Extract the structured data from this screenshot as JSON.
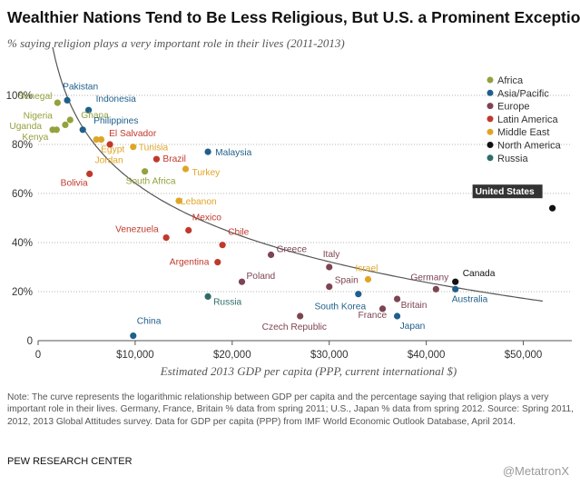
{
  "chart_data": {
    "type": "scatter",
    "title": "Wealthier Nations Tend to Be Less Religious, But U.S. a Prominent Exception",
    "subtitle": "% saying religion plays a very important role in their lives (2011-2013)",
    "xlabel": "Estimated 2013 GDP per capita (PPP, current international $)",
    "ylabel": "",
    "xlim": [
      0,
      55000
    ],
    "ylim": [
      0,
      100
    ],
    "x_ticks": [
      0,
      10000,
      20000,
      30000,
      40000,
      50000
    ],
    "x_tick_labels": [
      "0",
      "$10,000",
      "$20,000",
      "$30,000",
      "$40,000",
      "$50,000"
    ],
    "y_ticks": [
      0,
      20,
      40,
      60,
      80,
      100
    ],
    "y_tick_labels": [
      "0",
      "20%",
      "40%",
      "60%",
      "80%",
      "100%"
    ],
    "grid": "horizontal dotted",
    "legend_position": "top-right",
    "series": [
      {
        "name": "Africa",
        "color": "#95a13d",
        "points": [
          {
            "label": "Senegal",
            "x": 2000,
            "y": 97
          },
          {
            "label": "Ghana",
            "x": 3300,
            "y": 90
          },
          {
            "label": "Nigeria",
            "x": 2800,
            "y": 88
          },
          {
            "label": "Uganda",
            "x": 1500,
            "y": 86
          },
          {
            "label": "Kenya",
            "x": 1900,
            "y": 86
          },
          {
            "label": "South Africa",
            "x": 11000,
            "y": 69
          }
        ]
      },
      {
        "name": "Asia/Pacific",
        "color": "#1f5f8b",
        "points": [
          {
            "label": "Pakistan",
            "x": 3000,
            "y": 98
          },
          {
            "label": "Indonesia",
            "x": 5200,
            "y": 94
          },
          {
            "label": "Philippines",
            "x": 4600,
            "y": 86
          },
          {
            "label": "Malaysia",
            "x": 17500,
            "y": 77
          },
          {
            "label": "South Korea",
            "x": 33000,
            "y": 19
          },
          {
            "label": "Japan",
            "x": 37000,
            "y": 10
          },
          {
            "label": "Australia",
            "x": 43000,
            "y": 21
          },
          {
            "label": "China",
            "x": 9800,
            "y": 2
          }
        ]
      },
      {
        "name": "Europe",
        "color": "#7d4451",
        "points": [
          {
            "label": "Greece",
            "x": 24000,
            "y": 35
          },
          {
            "label": "Italy",
            "x": 30000,
            "y": 30
          },
          {
            "label": "Poland",
            "x": 21000,
            "y": 24
          },
          {
            "label": "Spain",
            "x": 30000,
            "y": 22
          },
          {
            "label": "Germany",
            "x": 41000,
            "y": 21
          },
          {
            "label": "Britain",
            "x": 37000,
            "y": 17
          },
          {
            "label": "France",
            "x": 35500,
            "y": 13
          },
          {
            "label": "Czech Republic",
            "x": 27000,
            "y": 10
          }
        ]
      },
      {
        "name": "Latin America",
        "color": "#c0392b",
        "points": [
          {
            "label": "El Salvador",
            "x": 7400,
            "y": 80
          },
          {
            "label": "Brazil",
            "x": 12200,
            "y": 74
          },
          {
            "label": "Bolivia",
            "x": 5300,
            "y": 68
          },
          {
            "label": "Mexico",
            "x": 15500,
            "y": 45
          },
          {
            "label": "Venezuela",
            "x": 13200,
            "y": 42
          },
          {
            "label": "Chile",
            "x": 19000,
            "y": 39
          },
          {
            "label": "Argentina",
            "x": 18500,
            "y": 32
          }
        ]
      },
      {
        "name": "Middle East",
        "color": "#e0a526",
        "points": [
          {
            "label": "Egypt",
            "x": 6000,
            "y": 82
          },
          {
            "label": "Jordan",
            "x": 6500,
            "y": 82
          },
          {
            "label": "Tunisia",
            "x": 9800,
            "y": 79
          },
          {
            "label": "Turkey",
            "x": 15200,
            "y": 70
          },
          {
            "label": "Lebanon",
            "x": 14500,
            "y": 57
          },
          {
            "label": "Israel",
            "x": 34000,
            "y": 25
          }
        ]
      },
      {
        "name": "North America",
        "color": "#111111",
        "points": [
          {
            "label": "United States",
            "x": 53000,
            "y": 54
          },
          {
            "label": "Canada",
            "x": 43000,
            "y": 24
          }
        ]
      },
      {
        "name": "Russia",
        "color": "#2e6e67",
        "points": [
          {
            "label": "Russia",
            "x": 17500,
            "y": 18
          }
        ]
      }
    ]
  },
  "note": "Note: The curve represents the logarithmic relationship between GDP per capita and the percentage saying that religion plays a very important role in their lives. Germany, France, Britain % data from spring 2011; U.S., Japan % data from spring 2012. Source: Spring 2011, 2012, 2013 Global Attitudes survey. Data for GDP per capita (PPP) from IMF World Economic Outlook Database, April 2014.",
  "source_label": "PEW RESEARCH CENTER",
  "watermark": "@MetatronX"
}
